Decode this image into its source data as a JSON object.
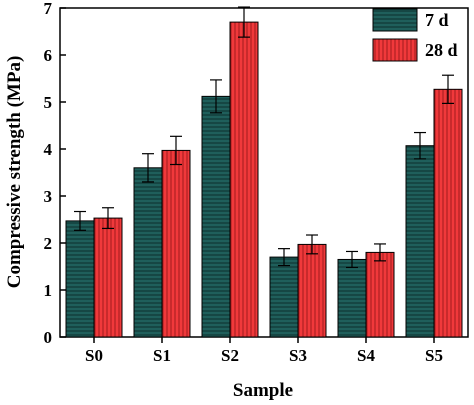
{
  "chart_data": {
    "type": "bar",
    "xlabel": "Sample",
    "ylabel": "Compressive strength (MPa)",
    "categories": [
      "S0",
      "S1",
      "S2",
      "S3",
      "S4",
      "S5"
    ],
    "ylim": [
      0,
      7
    ],
    "yticks": [
      "0",
      "1",
      "2",
      "3",
      "4",
      "5",
      "6",
      "7"
    ],
    "grid": false,
    "legend_position": "top-right",
    "series": [
      {
        "name": "7 d",
        "color": "#1f5f5b",
        "hatch": "horizontal",
        "values": [
          2.47,
          3.6,
          5.12,
          1.7,
          1.65,
          4.07
        ],
        "errors": [
          0.2,
          0.3,
          0.35,
          0.18,
          0.17,
          0.28
        ]
      },
      {
        "name": "28 d",
        "color": "#f0393b",
        "hatch": "vertical",
        "values": [
          2.53,
          3.97,
          6.7,
          1.97,
          1.8,
          5.27
        ],
        "errors": [
          0.22,
          0.3,
          0.32,
          0.2,
          0.18,
          0.3
        ]
      }
    ]
  }
}
